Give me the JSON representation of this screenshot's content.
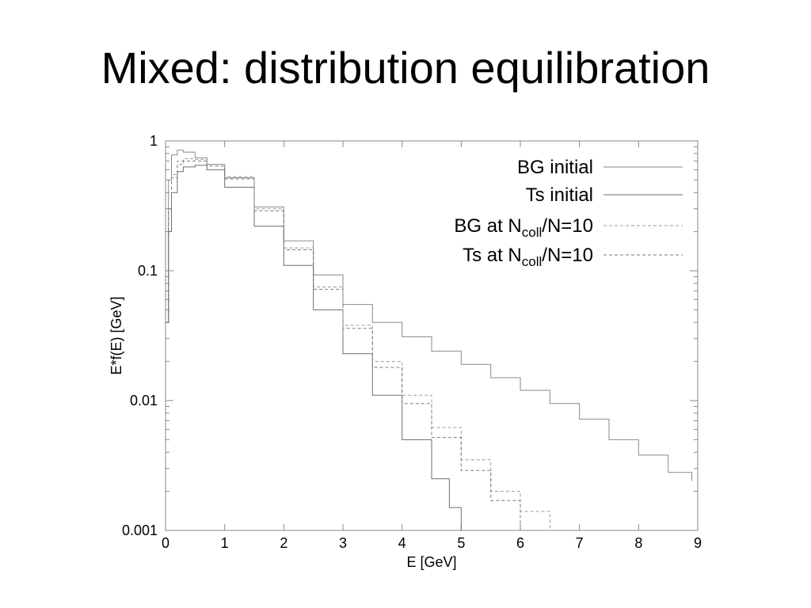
{
  "slide": {
    "title": "Mixed: distribution equilibration"
  },
  "chart_data": {
    "type": "line",
    "xlabel": "E [GeV]",
    "ylabel": "E*f(E) [GeV]",
    "xlim": [
      0,
      9
    ],
    "ylim": [
      0.001,
      1
    ],
    "y_scale": "log",
    "x_ticks": [
      "0",
      "1",
      "2",
      "3",
      "4",
      "5",
      "6",
      "7",
      "8",
      "9"
    ],
    "y_ticks": [
      {
        "value": 1,
        "label": "1"
      },
      {
        "value": 0.1,
        "label": "0.1"
      },
      {
        "value": 0.01,
        "label": "0.01"
      },
      {
        "value": 0.001,
        "label": "0.001"
      }
    ],
    "grid": false,
    "legend_position": "top-right",
    "series": [
      {
        "legend": {
          "main": "BG initial",
          "sub": "",
          "tail": ""
        },
        "style": "solid",
        "color": "#8a8a8a",
        "x": [
          0.0,
          0.05,
          0.1,
          0.2,
          0.3,
          0.5,
          0.7,
          1.0,
          1.5,
          2.0,
          2.5,
          3.0,
          3.5,
          4.0,
          4.5,
          5.0,
          5.5,
          6.0,
          6.5,
          7.0,
          7.5,
          8.0,
          8.5,
          8.9
        ],
        "y": [
          0.04,
          0.5,
          0.78,
          0.85,
          0.82,
          0.74,
          0.66,
          0.52,
          0.31,
          0.17,
          0.093,
          0.055,
          0.04,
          0.031,
          0.024,
          0.019,
          0.015,
          0.012,
          0.0095,
          0.0072,
          0.005,
          0.0038,
          0.0028,
          0.0024
        ]
      },
      {
        "legend": {
          "main": "Ts initial",
          "sub": "",
          "tail": ""
        },
        "style": "solid",
        "color": "#6e6e6e",
        "x": [
          0.0,
          0.05,
          0.1,
          0.2,
          0.3,
          0.5,
          0.7,
          1.0,
          1.5,
          2.0,
          2.5,
          3.0,
          3.5,
          4.0,
          4.5,
          4.8,
          5.0
        ],
        "y": [
          0.04,
          0.2,
          0.4,
          0.58,
          0.63,
          0.65,
          0.6,
          0.44,
          0.22,
          0.11,
          0.05,
          0.023,
          0.011,
          0.005,
          0.0025,
          0.0015,
          0.001
        ]
      },
      {
        "legend": {
          "main": "BG at N",
          "sub": "coll",
          "tail": "/N=10"
        },
        "style": "dashed",
        "color": "#9a9a9a",
        "x": [
          0.0,
          0.05,
          0.1,
          0.2,
          0.3,
          0.5,
          0.7,
          1.0,
          1.5,
          2.0,
          2.5,
          3.0,
          3.5,
          4.0,
          4.5,
          5.0,
          5.5,
          6.0,
          6.5
        ],
        "y": [
          0.04,
          0.3,
          0.55,
          0.7,
          0.73,
          0.72,
          0.66,
          0.53,
          0.3,
          0.15,
          0.075,
          0.038,
          0.02,
          0.011,
          0.0062,
          0.0035,
          0.002,
          0.0014,
          0.001
        ]
      },
      {
        "legend": {
          "main": "Ts at N",
          "sub": "coll",
          "tail": "/N=10"
        },
        "style": "dashed",
        "color": "#7a7a7a",
        "x": [
          0.0,
          0.05,
          0.1,
          0.2,
          0.3,
          0.5,
          0.7,
          1.0,
          1.5,
          2.0,
          2.5,
          3.0,
          3.5,
          4.0,
          4.5,
          5.0,
          5.5,
          6.0
        ],
        "y": [
          0.04,
          0.3,
          0.52,
          0.66,
          0.7,
          0.7,
          0.64,
          0.51,
          0.29,
          0.145,
          0.072,
          0.036,
          0.018,
          0.0095,
          0.0052,
          0.0029,
          0.0017,
          0.001
        ]
      }
    ]
  }
}
